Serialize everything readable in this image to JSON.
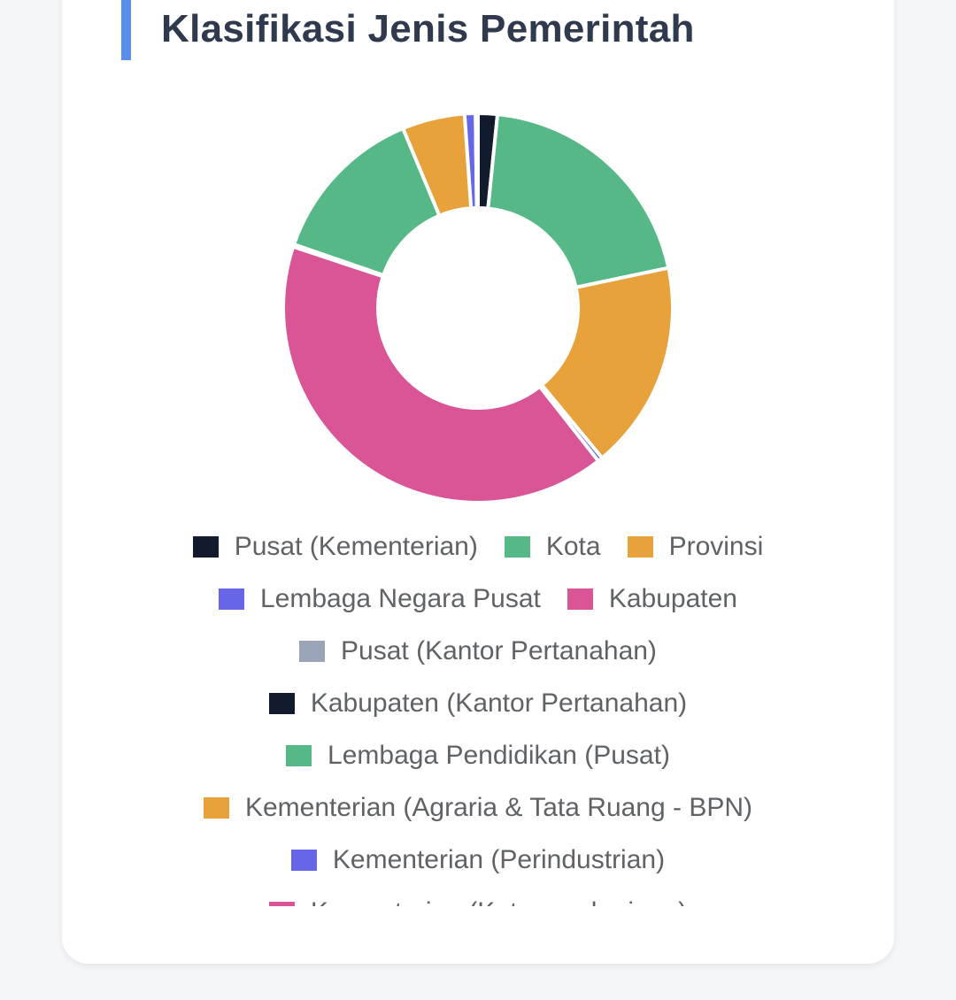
{
  "title": "Klasifikasi Jenis Pemerintah",
  "colors": {
    "accent": "#5b8def",
    "navy": "#121a2e",
    "green": "#55b886",
    "orange": "#e8a23b",
    "indigo": "#6766e6",
    "pink": "#d95596",
    "gray": "#9ba5b8"
  },
  "chart_data": {
    "type": "pie",
    "variant": "donut",
    "title": "Klasifikasi Jenis Pemerintah",
    "legend_position": "bottom",
    "categories": [
      "Pusat (Kementerian)",
      "Kota",
      "Provinsi",
      "Lembaga Negara Pusat",
      "Kabupaten",
      "Pusat (Kantor Pertanahan)",
      "Kabupaten (Kantor Pertanahan)",
      "Lembaga Pendidikan (Pusat)",
      "Kementerian (Agraria & Tata Ruang - BPN)",
      "Kementerian (Perindustrian)",
      "Kementerian (Ketenagakerjaan)"
    ],
    "values": [
      1.6,
      20.1,
      17.3,
      0.4,
      40.7,
      0.1,
      0.1,
      13.4,
      5.2,
      0.9,
      0.2
    ],
    "colors": [
      "#121a2e",
      "#55b886",
      "#e8a23b",
      "#6766e6",
      "#d95596",
      "#9ba5b8",
      "#121a2e",
      "#55b886",
      "#e8a23b",
      "#6766e6",
      "#d95596"
    ]
  }
}
